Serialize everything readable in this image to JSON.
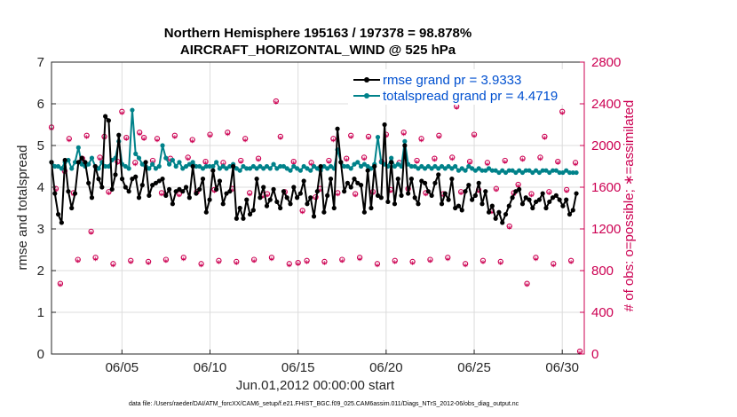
{
  "chart_data": {
    "type": "line",
    "title_line1": "Northern Hemisphere 195163 / 197378 = 98.878%",
    "title_line2": "AIRCRAFT_HORIZONTAL_WIND @ 525 hPa",
    "xlabel": "Jun.01,2012 00:00:00 start",
    "ylabel": "rmse and totalspread",
    "ylabel_right": "# of obs: o=possible; ∗=assimilated",
    "footer": "data file: /Users/raeder/DAI/ATM_forcXX/CAM6_setup/f.e21.FHIST_BGC.f09_025.CAM6assim.011/Diags_NTrS_2012-06/obs_diag_output.nc",
    "xlim": [
      1.0,
      31.25
    ],
    "ylim": [
      0,
      7
    ],
    "ylim_right": [
      0,
      2800
    ],
    "x_ticks": [
      5,
      10,
      15,
      20,
      25,
      30
    ],
    "x_tick_labels": [
      "06/05",
      "06/10",
      "06/15",
      "06/20",
      "06/25",
      "06/30"
    ],
    "y_ticks": [
      0,
      1,
      2,
      3,
      4,
      5,
      6,
      7
    ],
    "y_tick_labels": [
      "0",
      "1",
      "2",
      "3",
      "4",
      "5",
      "6",
      "7"
    ],
    "y_right_ticks": [
      0,
      400,
      800,
      1200,
      1600,
      2000,
      2400,
      2800
    ],
    "y_right_tick_labels": [
      "0",
      "400",
      "800",
      "1200",
      "1600",
      "2000",
      "2400",
      "2800"
    ],
    "grid": true,
    "legend_position": "top-right",
    "series": [
      {
        "name": "rmse grand pr = 3.9333",
        "color": "#000000",
        "values": [
          4.6,
          3.85,
          3.35,
          3.15,
          4.65,
          3.9,
          3.5,
          3.85,
          4.6,
          4.7,
          4.6,
          4.1,
          3.75,
          4.5,
          4.2,
          4.0,
          5.7,
          5.6,
          3.95,
          4.3,
          5.25,
          4.2,
          4.0,
          3.9,
          4.2,
          4.25,
          3.75,
          4.05,
          4.6,
          3.8,
          4.05,
          4.1,
          4.15,
          4.2,
          3.8,
          3.95,
          3.6,
          3.9,
          3.95,
          3.9,
          4.0,
          3.75,
          4.5,
          3.85,
          3.95,
          4.2,
          3.4,
          3.7,
          4.4,
          3.95,
          4.15,
          3.6,
          3.85,
          3.9,
          4.5,
          3.25,
          3.5,
          3.25,
          3.7,
          3.35,
          3.45,
          4.2,
          3.75,
          4.0,
          3.55,
          3.7,
          3.95,
          3.65,
          3.5,
          3.9,
          3.75,
          3.6,
          4.0,
          3.75,
          3.85,
          4.15,
          3.6,
          3.75,
          3.3,
          3.9,
          4.5,
          3.4,
          3.8,
          4.2,
          3.5,
          5.4,
          4.6,
          3.9,
          4.1,
          4.0,
          4.2,
          4.1,
          4.05,
          3.4,
          4.4,
          3.5,
          4.5,
          3.8,
          3.75,
          5.5,
          3.65,
          4.6,
          3.6,
          4.2,
          3.8,
          5.0,
          3.85,
          4.2,
          3.75,
          3.6,
          4.15,
          4.1,
          3.9,
          3.8,
          4.1,
          4.3,
          3.6,
          3.85,
          3.7,
          4.2,
          3.5,
          3.55,
          3.45,
          3.9,
          4.05,
          3.7,
          3.8,
          4.1,
          3.6,
          3.9,
          3.4,
          3.55,
          3.25,
          3.4,
          3.15,
          3.35,
          3.55,
          3.75,
          3.9,
          3.95,
          3.6,
          3.75,
          3.7,
          3.5,
          3.65,
          3.7,
          3.85,
          3.5,
          3.65,
          3.75,
          3.8,
          3.7,
          3.55,
          3.7,
          3.35,
          3.45,
          3.85
        ]
      },
      {
        "name": "totalspread grand pr = 4.4719",
        "color": "#00828a",
        "values": [
          4.6,
          4.5,
          4.5,
          4.45,
          4.6,
          4.65,
          4.45,
          4.6,
          4.95,
          4.55,
          4.5,
          4.55,
          4.7,
          4.5,
          4.45,
          4.6,
          4.5,
          4.5,
          4.65,
          4.7,
          5.1,
          4.55,
          4.5,
          4.45,
          5.85,
          4.8,
          4.7,
          4.55,
          4.5,
          4.45,
          4.55,
          4.45,
          4.5,
          5.0,
          4.7,
          4.55,
          4.65,
          4.5,
          4.6,
          4.45,
          4.5,
          4.55,
          4.6,
          4.5,
          4.5,
          4.45,
          4.5,
          4.5,
          4.5,
          4.6,
          4.45,
          4.5,
          4.45,
          4.5,
          4.55,
          4.45,
          4.4,
          4.5,
          4.45,
          4.45,
          4.5,
          4.45,
          4.5,
          4.45,
          4.5,
          4.45,
          4.55,
          4.45,
          4.5,
          4.5,
          4.45,
          4.4,
          4.5,
          4.45,
          4.4,
          4.5,
          4.45,
          4.4,
          4.5,
          4.45,
          4.4,
          4.5,
          4.45,
          4.5,
          4.45,
          4.9,
          4.6,
          4.5,
          4.5,
          4.45,
          4.55,
          4.6,
          4.5,
          4.55,
          4.5,
          4.45,
          4.55,
          5.2,
          4.6,
          4.55,
          4.5,
          4.7,
          4.5,
          4.55,
          4.5,
          5.1,
          4.55,
          4.5,
          4.5,
          4.45,
          4.5,
          4.45,
          4.5,
          4.45,
          4.5,
          4.45,
          4.5,
          4.45,
          4.5,
          4.45,
          4.5,
          4.4,
          4.45,
          4.4,
          4.5,
          4.45,
          4.4,
          4.45,
          4.4,
          4.4,
          4.45,
          4.4,
          4.4,
          4.35,
          4.4,
          4.35,
          4.4,
          4.4,
          4.35,
          4.4,
          4.35,
          4.4,
          4.4,
          4.35,
          4.4,
          4.35,
          4.4,
          4.4,
          4.35,
          4.4,
          4.4,
          4.35,
          4.35,
          4.4,
          4.35,
          4.35,
          4.35
        ]
      }
    ],
    "obs_right_axis": {
      "possible_symbol": "o",
      "assimilated_symbol": "*",
      "color": "#cc0052",
      "pattern_cycle": [
        2100,
        1500,
        900,
        1800
      ],
      "pattern_jitter": [
        0,
        60,
        -40,
        30,
        -60,
        20,
        -20,
        50,
        -30,
        10
      ],
      "cycle_overrides": {
        "0": 2150,
        "2": 650,
        "3": 1730,
        "9": 1150,
        "16": 2300,
        "17": 2050,
        "21": 2050,
        "32": 2030,
        "48": 1500,
        "51": 2400,
        "56": 850,
        "57": 1350,
        "60": 1480,
        "92": 2350,
        "100": 1350,
        "104": 1200,
        "106": 1600,
        "108": 650,
        "116": 2300,
        "120": 0
      }
    }
  }
}
